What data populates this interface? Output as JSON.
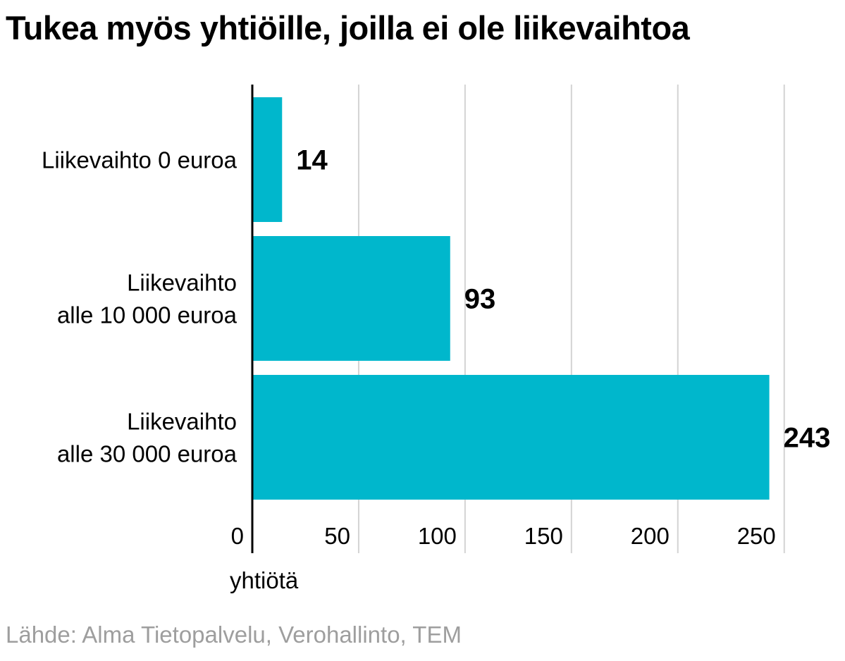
{
  "title": "Tukea myös yhtiöille, joilla ei ole liikevaihtoa",
  "source": "Lähde: Alma Tietopalvelu, Verohallinto, TEM",
  "chart_data": {
    "type": "bar",
    "orientation": "horizontal",
    "title": "Tukea myös yhtiöille, joilla ei ole liikevaihtoa",
    "xlabel": "yhtiötä",
    "ylabel": "",
    "categories": [
      [
        "Liikevaihto 0 euroa"
      ],
      [
        "Liikevaihto",
        "alle 10 000 euroa"
      ],
      [
        "Liikevaihto",
        "alle 30 000 euroa"
      ]
    ],
    "values": [
      14,
      93,
      243
    ],
    "data_labels": [
      "14",
      "93",
      "243"
    ],
    "xlim": [
      0,
      250
    ],
    "xticks": [
      0,
      50,
      100,
      150,
      200,
      250
    ],
    "xtick_labels": [
      "0",
      "50",
      "100",
      "150",
      "200",
      "250"
    ],
    "grid": "vertical",
    "legend": "none",
    "bar_color": "#00b7cc",
    "gridline_color": "#d4d4d4",
    "axis_color": "#000000"
  }
}
